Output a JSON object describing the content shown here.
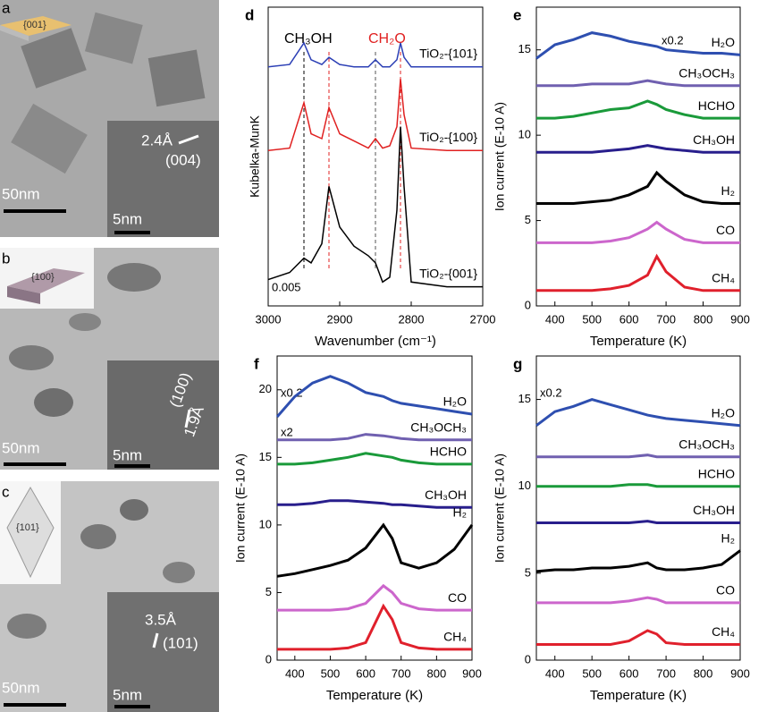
{
  "images": [
    {
      "label": "a",
      "facet": "{001}",
      "scale": "50nm",
      "inset_scale": "5nm",
      "spacing": "2.4Å",
      "plane": "(004)"
    },
    {
      "label": "b",
      "facet": "{100}",
      "scale": "50nm",
      "inset_scale": "5nm",
      "spacing": "1.9Å",
      "plane": "(100)"
    },
    {
      "label": "c",
      "facet": "{101}",
      "scale": "50nm",
      "inset_scale": "5nm",
      "spacing": "3.5Å",
      "plane": "(101)"
    }
  ],
  "chart_data": [
    {
      "type": "line",
      "panel": "d",
      "xlabel": "Wavenumber (cm⁻¹)",
      "ylabel": "Kubelka-MunK",
      "xlim": [
        3000,
        2700
      ],
      "xticks": [
        3000,
        2900,
        2800,
        2700
      ],
      "ylim": [
        0,
        12.5
      ],
      "x": [
        3000,
        2970,
        2950,
        2940,
        2925,
        2915,
        2900,
        2880,
        2860,
        2850,
        2840,
        2830,
        2820,
        2815,
        2810,
        2800,
        2750,
        2700
      ],
      "vlines": [
        {
          "x": 2950,
          "color": "#000000"
        },
        {
          "x": 2915,
          "color": "#e02020"
        },
        {
          "x": 2850,
          "color": "#555555"
        },
        {
          "x": 2815,
          "color": "#e02020"
        }
      ],
      "annotations": [
        {
          "text": "CH₃OH",
          "color": "#000000"
        },
        {
          "text": "CH₂O",
          "color": "#e02020"
        },
        {
          "text": "0.005",
          "color": "#000000"
        }
      ],
      "series": [
        {
          "name": "TiO₂-{101}",
          "color": "#2b3fb5",
          "values": [
            10,
            10.1,
            11,
            10.3,
            10.1,
            10.4,
            10.1,
            10,
            10,
            10.3,
            10,
            10,
            10.3,
            11,
            10.4,
            10,
            10,
            10
          ]
        },
        {
          "name": "TiO₂-{100}",
          "color": "#e02020",
          "values": [
            6.5,
            6.6,
            8.5,
            7.2,
            7,
            8.3,
            7.2,
            6.9,
            6.6,
            7,
            6.6,
            6.7,
            7.5,
            9.5,
            8,
            6.6,
            6.5,
            6.5
          ]
        },
        {
          "name": "TiO₂-{001}",
          "color": "#000000",
          "values": [
            1.1,
            1.4,
            2,
            1.8,
            2.6,
            5,
            3.3,
            2.5,
            2.1,
            1.8,
            1,
            1.2,
            4,
            7.5,
            5,
            1,
            0.8,
            0.8
          ]
        }
      ]
    },
    {
      "type": "line",
      "panel": "e",
      "xlabel": "Temperature (K)",
      "ylabel": "Ion current (E-10 A)",
      "xlim": [
        350,
        900
      ],
      "xticks": [
        400,
        500,
        600,
        700,
        800,
        900
      ],
      "ylim": [
        0,
        17.5
      ],
      "yticks": [
        0,
        5,
        10,
        15
      ],
      "x": [
        350,
        400,
        450,
        500,
        550,
        600,
        650,
        675,
        700,
        750,
        800,
        850,
        900
      ],
      "annotations": [
        {
          "text": "x0.2",
          "color": "#000000"
        }
      ],
      "series": [
        {
          "name": "H₂O",
          "color": "#2e4fb0",
          "values": [
            14.5,
            15.3,
            15.6,
            16,
            15.8,
            15.5,
            15.3,
            15.2,
            15,
            14.9,
            14.8,
            14.8,
            14.7
          ]
        },
        {
          "name": "CH₃OCH₃",
          "color": "#7060b0",
          "values": [
            12.9,
            12.9,
            12.9,
            13,
            13,
            13,
            13.2,
            13.1,
            13,
            12.9,
            12.9,
            12.9,
            12.9
          ]
        },
        {
          "name": "HCHO",
          "color": "#1a9a3a",
          "values": [
            11,
            11,
            11.1,
            11.3,
            11.5,
            11.6,
            12,
            11.8,
            11.5,
            11.2,
            11,
            11,
            11
          ]
        },
        {
          "name": "CH₃OH",
          "color": "#281e8c",
          "values": [
            9,
            9,
            9,
            9,
            9.1,
            9.2,
            9.4,
            9.3,
            9.2,
            9.1,
            9,
            9,
            9
          ]
        },
        {
          "name": "H₂",
          "color": "#000000",
          "values": [
            6,
            6,
            6,
            6.1,
            6.2,
            6.5,
            7,
            7.8,
            7.3,
            6.5,
            6.1,
            6,
            6
          ]
        },
        {
          "name": "CO",
          "color": "#cc66cc",
          "values": [
            3.7,
            3.7,
            3.7,
            3.7,
            3.8,
            4,
            4.5,
            4.9,
            4.5,
            3.9,
            3.7,
            3.7,
            3.7
          ]
        },
        {
          "name": "CH₄",
          "color": "#e0202c",
          "values": [
            0.9,
            0.9,
            0.9,
            0.9,
            1,
            1.2,
            1.8,
            2.9,
            2,
            1.1,
            0.9,
            0.9,
            0.9
          ]
        }
      ]
    },
    {
      "type": "line",
      "panel": "f",
      "xlabel": "Temperature (K)",
      "ylabel": "Ion current (E-10 A)",
      "xlim": [
        350,
        900
      ],
      "xticks": [
        400,
        500,
        600,
        700,
        800,
        900
      ],
      "ylim": [
        0,
        22.5
      ],
      "yticks": [
        0,
        5,
        10,
        15,
        20
      ],
      "x": [
        350,
        400,
        450,
        500,
        550,
        600,
        650,
        675,
        700,
        750,
        800,
        850,
        900
      ],
      "annotations": [
        {
          "text": "x0.2",
          "color": "#000000"
        },
        {
          "text": "x2",
          "color": "#000000"
        }
      ],
      "series": [
        {
          "name": "H₂O",
          "color": "#2e4fb0",
          "values": [
            18,
            19.5,
            20.5,
            21,
            20.5,
            19.8,
            19.5,
            19.2,
            19,
            18.8,
            18.6,
            18.4,
            18.2
          ]
        },
        {
          "name": "CH₃OCH₃",
          "color": "#7060b0",
          "values": [
            16.3,
            16.3,
            16.3,
            16.3,
            16.4,
            16.7,
            16.6,
            16.5,
            16.4,
            16.3,
            16.3,
            16.3,
            16.3
          ]
        },
        {
          "name": "HCHO",
          "color": "#1a9a3a",
          "values": [
            14.5,
            14.5,
            14.6,
            14.8,
            15,
            15.3,
            15.1,
            15,
            14.8,
            14.6,
            14.5,
            14.5,
            14.5
          ]
        },
        {
          "name": "CH₃OH",
          "color": "#281e8c",
          "values": [
            11.5,
            11.5,
            11.6,
            11.8,
            11.8,
            11.7,
            11.6,
            11.5,
            11.5,
            11.4,
            11.3,
            11.3,
            11.3
          ]
        },
        {
          "name": "H₂",
          "color": "#000000",
          "values": [
            6.2,
            6.4,
            6.7,
            7,
            7.4,
            8.3,
            10,
            9,
            7.2,
            6.8,
            7.2,
            8.2,
            10
          ]
        },
        {
          "name": "CO",
          "color": "#cc66cc",
          "values": [
            3.7,
            3.7,
            3.7,
            3.7,
            3.8,
            4.2,
            5.5,
            5,
            4.2,
            3.8,
            3.7,
            3.7,
            3.7
          ]
        },
        {
          "name": "CH₄",
          "color": "#e0202c",
          "values": [
            0.8,
            0.8,
            0.8,
            0.8,
            0.9,
            1.3,
            4,
            3,
            1.3,
            0.9,
            0.8,
            0.8,
            0.8
          ]
        }
      ]
    },
    {
      "type": "line",
      "panel": "g",
      "xlabel": "Temperature (K)",
      "ylabel": "Ion current (E-10 A)",
      "xlim": [
        350,
        900
      ],
      "xticks": [
        400,
        500,
        600,
        700,
        800,
        900
      ],
      "ylim": [
        0,
        17.5
      ],
      "yticks": [
        0,
        5,
        10,
        15
      ],
      "x": [
        350,
        400,
        450,
        500,
        550,
        600,
        650,
        675,
        700,
        750,
        800,
        850,
        900
      ],
      "annotations": [
        {
          "text": "x0.2",
          "color": "#000000"
        }
      ],
      "series": [
        {
          "name": "H₂O",
          "color": "#2e4fb0",
          "values": [
            13.5,
            14.3,
            14.6,
            15,
            14.7,
            14.4,
            14.1,
            14,
            13.9,
            13.8,
            13.7,
            13.6,
            13.5
          ]
        },
        {
          "name": "CH₃OCH₃",
          "color": "#7060b0",
          "values": [
            11.7,
            11.7,
            11.7,
            11.7,
            11.7,
            11.7,
            11.8,
            11.7,
            11.7,
            11.7,
            11.7,
            11.7,
            11.7
          ]
        },
        {
          "name": "HCHO",
          "color": "#1a9a3a",
          "values": [
            10,
            10,
            10,
            10,
            10,
            10.1,
            10.1,
            10,
            10,
            10,
            10,
            10,
            10
          ]
        },
        {
          "name": "CH₃OH",
          "color": "#281e8c",
          "values": [
            7.9,
            7.9,
            7.9,
            7.9,
            7.9,
            7.9,
            8,
            7.9,
            7.9,
            7.9,
            7.9,
            7.9,
            7.9
          ]
        },
        {
          "name": "H₂",
          "color": "#000000",
          "values": [
            5.1,
            5.2,
            5.2,
            5.3,
            5.3,
            5.4,
            5.6,
            5.3,
            5.2,
            5.2,
            5.3,
            5.5,
            6.3
          ]
        },
        {
          "name": "CO",
          "color": "#cc66cc",
          "values": [
            3.3,
            3.3,
            3.3,
            3.3,
            3.3,
            3.4,
            3.6,
            3.5,
            3.3,
            3.3,
            3.3,
            3.3,
            3.3
          ]
        },
        {
          "name": "CH₄",
          "color": "#e0202c",
          "values": [
            0.9,
            0.9,
            0.9,
            0.9,
            0.9,
            1.1,
            1.7,
            1.5,
            1,
            0.9,
            0.9,
            0.9,
            0.9
          ]
        }
      ]
    }
  ]
}
